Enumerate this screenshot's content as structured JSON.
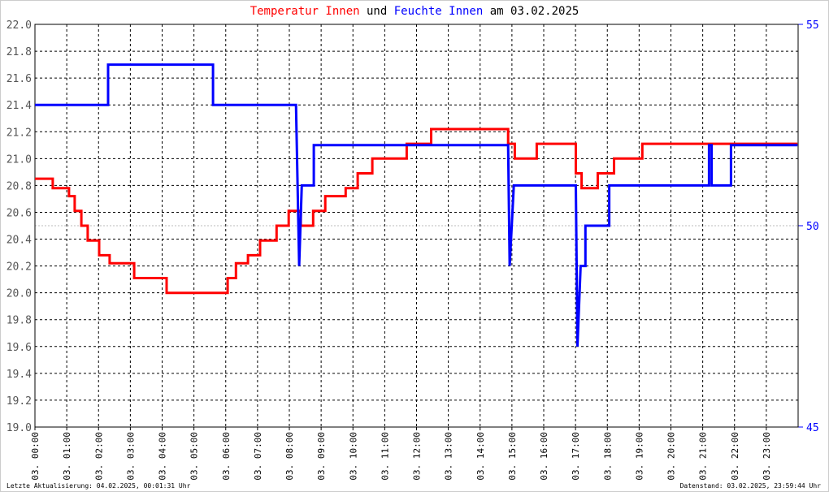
{
  "chart_data": {
    "type": "line",
    "series_title_joiner": "und",
    "title_date": "am 03.02.2025",
    "xlim": [
      0,
      24
    ],
    "xticks": [
      {
        "value": 0,
        "label": "03. 00:00"
      },
      {
        "value": 1,
        "label": "03. 01:00"
      },
      {
        "value": 2,
        "label": "03. 02:00"
      },
      {
        "value": 3,
        "label": "03. 03:00"
      },
      {
        "value": 4,
        "label": "03. 04:00"
      },
      {
        "value": 5,
        "label": "03. 05:00"
      },
      {
        "value": 6,
        "label": "03. 06:00"
      },
      {
        "value": 7,
        "label": "03. 07:00"
      },
      {
        "value": 8,
        "label": "03. 08:00"
      },
      {
        "value": 9,
        "label": "03. 09:00"
      },
      {
        "value": 10,
        "label": "03. 10:00"
      },
      {
        "value": 11,
        "label": "03. 11:00"
      },
      {
        "value": 12,
        "label": "03. 12:00"
      },
      {
        "value": 13,
        "label": "03. 13:00"
      },
      {
        "value": 14,
        "label": "03. 14:00"
      },
      {
        "value": 15,
        "label": "03. 15:00"
      },
      {
        "value": 16,
        "label": "03. 16:00"
      },
      {
        "value": 17,
        "label": "03. 17:00"
      },
      {
        "value": 18,
        "label": "03. 18:00"
      },
      {
        "value": 19,
        "label": "03. 19:00"
      },
      {
        "value": 20,
        "label": "03. 20:00"
      },
      {
        "value": 21,
        "label": "03. 21:00"
      },
      {
        "value": 22,
        "label": "03. 22:00"
      },
      {
        "value": 23,
        "label": "03. 23:00"
      }
    ],
    "ylim": [
      19,
      22
    ],
    "yticks": [
      {
        "value": 19,
        "label": "19.0"
      },
      19.2,
      19.4,
      19.6,
      19.8,
      {
        "value": 20,
        "label": "20.0"
      },
      20.2,
      20.4,
      20.6,
      20.8,
      {
        "value": 21,
        "label": "21.0"
      },
      21.2,
      21.4,
      21.6,
      21.8,
      {
        "value": 22,
        "label": "22.0"
      }
    ],
    "y2lim": [
      45,
      55
    ],
    "y2ticks": [
      45,
      50,
      55
    ],
    "grid": true,
    "series": [
      {
        "name": "Temperatur Innen",
        "color": "#ff0000",
        "axis": "y",
        "x": [
          0,
          0.56,
          0.56,
          1.07,
          1.07,
          1.25,
          1.25,
          1.46,
          1.46,
          1.66,
          1.66,
          2.02,
          2.02,
          2.35,
          2.35,
          3.12,
          3.12,
          4.14,
          4.14,
          6.06,
          6.06,
          6.32,
          6.32,
          6.7,
          6.7,
          7.08,
          7.08,
          7.6,
          7.6,
          7.98,
          7.98,
          8.36,
          8.36,
          8.75,
          8.75,
          9.13,
          9.13,
          9.77,
          9.77,
          10.15,
          10.15,
          10.61,
          10.61,
          11.69,
          11.69,
          12.46,
          12.46,
          14.88,
          14.88,
          15.09,
          15.09,
          15.78,
          15.78,
          17.01,
          17.01,
          17.19,
          17.19,
          17.7,
          17.7,
          18.21,
          18.21,
          19.1,
          19.1,
          23.98
        ],
        "values": [
          20.85,
          20.85,
          20.78,
          20.78,
          20.72,
          20.72,
          20.61,
          20.61,
          20.5,
          20.5,
          20.39,
          20.39,
          20.28,
          20.28,
          20.22,
          20.22,
          20.11,
          20.11,
          20.0,
          20.0,
          20.11,
          20.11,
          20.22,
          20.22,
          20.28,
          20.28,
          20.39,
          20.39,
          20.5,
          20.5,
          20.61,
          20.61,
          20.5,
          20.5,
          20.61,
          20.61,
          20.72,
          20.72,
          20.78,
          20.78,
          20.89,
          20.89,
          21.0,
          21.0,
          21.11,
          21.11,
          21.22,
          21.22,
          21.11,
          21.11,
          21.0,
          21.0,
          21.11,
          21.11,
          20.89,
          20.89,
          20.78,
          20.78,
          20.89,
          20.89,
          21.0,
          21.0,
          21.11,
          21.11
        ]
      },
      {
        "name": "Feuchte Innen",
        "color": "#0000ff",
        "axis": "y2",
        "x": [
          0,
          2.3,
          2.3,
          5.6,
          5.6,
          8.21,
          8.31,
          8.39,
          8.77,
          8.77,
          14.88,
          14.93,
          15.06,
          17.01,
          17.06,
          17.16,
          17.31,
          17.31,
          18.06,
          18.06,
          21.2,
          21.2,
          21.28,
          21.28,
          21.89,
          21.89,
          23.98
        ],
        "values": [
          53,
          53,
          54,
          54,
          53,
          53,
          49,
          51,
          51,
          52,
          52,
          49,
          51,
          51,
          47,
          49,
          49,
          50,
          50,
          51,
          51,
          52,
          52,
          51,
          51,
          52,
          52
        ]
      }
    ],
    "footer_left": "Letzte Aktualisierung: 04.02.2025, 00:01:31 Uhr",
    "footer_right": "Datenstand: 03.02.2025, 23:59:44 Uhr"
  }
}
